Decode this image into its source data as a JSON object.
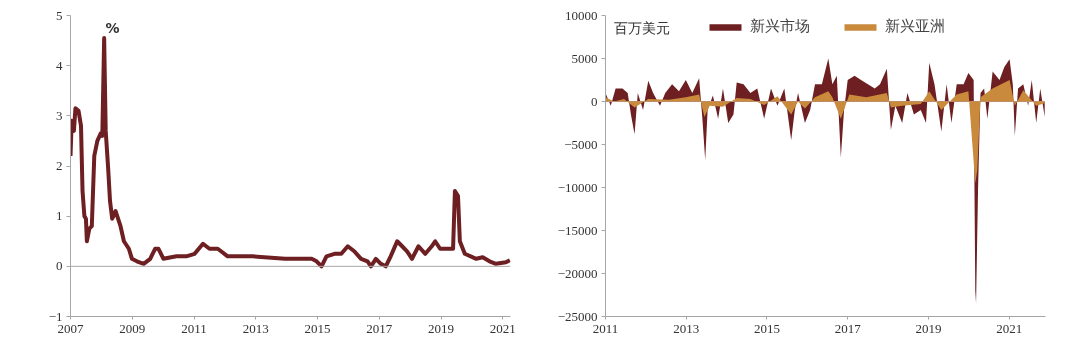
{
  "chart_data": [
    {
      "type": "line",
      "ylabel": "%",
      "xlim": [
        2007,
        2021.25
      ],
      "ylim": [
        -1,
        5
      ],
      "xticks": [
        2007,
        2009,
        2011,
        2013,
        2015,
        2017,
        2019,
        2021
      ],
      "yticks": [
        -1,
        0,
        1,
        2,
        3,
        4,
        5
      ],
      "grid": false,
      "legend": false,
      "ref_lines": [
        {
          "axis": "y",
          "value": 0,
          "label": null,
          "color": "#a6a6a6"
        }
      ],
      "series": [
        {
          "color": "#6e1f22",
          "x": [
            2007.0,
            2007.04,
            2007.11,
            2007.16,
            2007.26,
            2007.34,
            2007.39,
            2007.45,
            2007.5,
            2007.53,
            2007.61,
            2007.69,
            2007.77,
            2007.87,
            2007.98,
            2008.03,
            2008.09,
            2008.14,
            2008.22,
            2008.28,
            2008.35,
            2008.46,
            2008.62,
            2008.73,
            2008.89,
            2008.99,
            2009.15,
            2009.37,
            2009.58,
            2009.74,
            2009.85,
            2010.01,
            2010.43,
            2010.75,
            2011.02,
            2011.29,
            2011.5,
            2011.77,
            2012.09,
            2012.89,
            2013.95,
            2014.81,
            2014.97,
            2015.13,
            2015.29,
            2015.55,
            2015.77,
            2015.98,
            2016.19,
            2016.41,
            2016.62,
            2016.73,
            2016.89,
            2017.05,
            2017.21,
            2017.37,
            2017.58,
            2017.74,
            2017.9,
            2018.06,
            2018.27,
            2018.49,
            2018.7,
            2018.81,
            2018.97,
            2019.18,
            2019.39,
            2019.45,
            2019.55,
            2019.61,
            2019.77,
            2020.14,
            2020.35,
            2020.57,
            2020.78,
            2021.1,
            2021.23
          ],
          "values": [
            2.2,
            2.9,
            2.7,
            3.15,
            3.1,
            2.8,
            1.5,
            1.0,
            0.95,
            0.5,
            0.75,
            0.8,
            2.2,
            2.5,
            2.65,
            2.6,
            4.55,
            2.7,
            1.95,
            1.3,
            0.95,
            1.1,
            0.8,
            0.5,
            0.35,
            0.15,
            0.1,
            0.05,
            0.15,
            0.35,
            0.35,
            0.15,
            0.2,
            0.2,
            0.25,
            0.45,
            0.35,
            0.35,
            0.2,
            0.2,
            0.15,
            0.15,
            0.1,
            0.0,
            0.2,
            0.25,
            0.25,
            0.4,
            0.3,
            0.15,
            0.1,
            0.0,
            0.15,
            0.05,
            0.0,
            0.2,
            0.5,
            0.4,
            0.3,
            0.15,
            0.4,
            0.25,
            0.4,
            0.5,
            0.35,
            0.35,
            0.35,
            1.5,
            1.4,
            0.5,
            0.25,
            0.15,
            0.18,
            0.1,
            0.05,
            0.08,
            0.12
          ]
        }
      ]
    },
    {
      "type": "area",
      "ylabel": "百万美元",
      "xlim": [
        2011,
        2021.9
      ],
      "ylim": [
        -25000,
        10000
      ],
      "xticks": [
        2011,
        2013,
        2015,
        2017,
        2019,
        2021
      ],
      "yticks": [
        -25000,
        -20000,
        -15000,
        -10000,
        -5000,
        0,
        5000,
        10000
      ],
      "grid": false,
      "legend": "top",
      "series": [
        {
          "name": "新兴市场",
          "color": "#6e1f22",
          "x": [
            2011.0,
            2011.13,
            2011.25,
            2011.42,
            2011.55,
            2011.63,
            2011.72,
            2011.8,
            2011.93,
            2012.06,
            2012.18,
            2012.35,
            2012.48,
            2012.65,
            2012.82,
            2012.99,
            2013.15,
            2013.32,
            2013.4,
            2013.47,
            2013.53,
            2013.66,
            2013.79,
            2013.91,
            2014.04,
            2014.17,
            2014.25,
            2014.42,
            2014.59,
            2014.76,
            2014.93,
            2015.1,
            2015.26,
            2015.43,
            2015.6,
            2015.69,
            2015.77,
            2015.94,
            2016.07,
            2016.19,
            2016.36,
            2016.52,
            2016.62,
            2016.73,
            2016.83,
            2016.91,
            2017.0,
            2017.17,
            2017.33,
            2017.5,
            2017.67,
            2017.8,
            2017.97,
            2018.07,
            2018.18,
            2018.35,
            2018.48,
            2018.64,
            2018.81,
            2018.94,
            2019.02,
            2019.15,
            2019.32,
            2019.45,
            2019.57,
            2019.7,
            2019.87,
            2019.99,
            2020.12,
            2020.16,
            2020.18,
            2020.23,
            2020.29,
            2020.38,
            2020.46,
            2020.59,
            2020.76,
            2020.88,
            2021.01,
            2021.09,
            2021.14,
            2021.22,
            2021.35,
            2021.47,
            2021.56,
            2021.67,
            2021.77,
            2021.88
          ],
          "values": [
            1000,
            -500,
            1500,
            1500,
            1000,
            -1500,
            -3800,
            1000,
            -1000,
            2400,
            1000,
            -500,
            1000,
            2000,
            1200,
            2500,
            1000,
            2700,
            -2000,
            -6800,
            -1000,
            700,
            -2000,
            1500,
            -2500,
            -1500,
            2200,
            2000,
            1000,
            1500,
            -2000,
            1500,
            -500,
            1500,
            -4500,
            -1000,
            1000,
            -2500,
            -1000,
            2000,
            2000,
            5000,
            2000,
            3000,
            -6500,
            -1000,
            2500,
            3000,
            2500,
            2000,
            1500,
            2000,
            3800,
            -3300,
            -500,
            -2500,
            1000,
            -1500,
            -1000,
            -2500,
            4500,
            2000,
            -3500,
            2000,
            -2500,
            2000,
            2000,
            3300,
            2500,
            -22000,
            -23500,
            -10000,
            1000,
            1500,
            -2000,
            3500,
            2500,
            4000,
            4900,
            2000,
            -4000,
            1500,
            2000,
            -500,
            2500,
            -2500,
            1500,
            -1800
          ]
        },
        {
          "name": "新兴亚洲",
          "color": "#c98a3c",
          "x": [
            2011.0,
            2011.21,
            2011.46,
            2011.72,
            2012.06,
            2012.57,
            2012.99,
            2013.32,
            2013.45,
            2013.58,
            2013.91,
            2014.25,
            2014.59,
            2014.93,
            2015.26,
            2015.6,
            2015.77,
            2015.94,
            2016.19,
            2016.52,
            2016.62,
            2016.83,
            2017.04,
            2017.46,
            2017.97,
            2018.07,
            2018.35,
            2018.81,
            2019.02,
            2019.32,
            2019.7,
            2019.99,
            2020.16,
            2020.21,
            2020.29,
            2020.59,
            2021.01,
            2021.14,
            2021.35,
            2021.67,
            2021.88
          ],
          "values": [
            500,
            0,
            300,
            -700,
            300,
            200,
            500,
            800,
            -1800,
            -500,
            -600,
            400,
            300,
            -400,
            600,
            -1500,
            0,
            -800,
            500,
            1200,
            500,
            -2000,
            800,
            500,
            1000,
            -700,
            -500,
            -300,
            1200,
            -1000,
            800,
            1200,
            -9500,
            -8000,
            500,
            1500,
            2500,
            -500,
            1300,
            -500,
            -200
          ]
        }
      ]
    }
  ]
}
